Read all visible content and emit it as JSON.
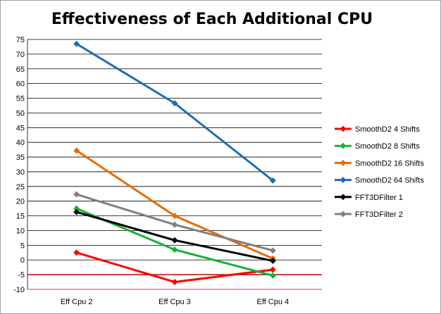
{
  "chart_data": {
    "type": "line",
    "title": "Effectiveness of Each Additional CPU",
    "xlabel": "",
    "ylabel": "",
    "categories": [
      "Eff Cpu 2",
      "Eff Cpu 3",
      "Eff Cpu 4"
    ],
    "ylim": [
      -10,
      75
    ],
    "yticks": [
      75,
      70,
      65,
      60,
      55,
      50,
      45,
      40,
      35,
      30,
      25,
      20,
      15,
      10,
      5,
      0,
      -5,
      -10
    ],
    "grid": true,
    "legend_position": "right",
    "series": [
      {
        "name": "SmoothD2 4 Shifts",
        "color": "#ff0000",
        "values": [
          2.5,
          -7.5,
          -3.3
        ]
      },
      {
        "name": "SmoothD2 8 Shifts",
        "color": "#1aaf3c",
        "values": [
          17.5,
          3.5,
          -5.3
        ]
      },
      {
        "name": "SmoothD2 16 Shifts",
        "color": "#e46c0a",
        "values": [
          37.2,
          15.0,
          0.5
        ]
      },
      {
        "name": "SmoothD2 64 Shifts",
        "color": "#1f6cb5",
        "values": [
          73.5,
          53.3,
          27.0
        ]
      },
      {
        "name": "FFT3DFilter 1",
        "color": "#000000",
        "values": [
          16.3,
          6.7,
          -0.3
        ]
      },
      {
        "name": "FFT3DFilter 2",
        "color": "#808080",
        "values": [
          22.3,
          12.0,
          3.2
        ]
      }
    ]
  }
}
